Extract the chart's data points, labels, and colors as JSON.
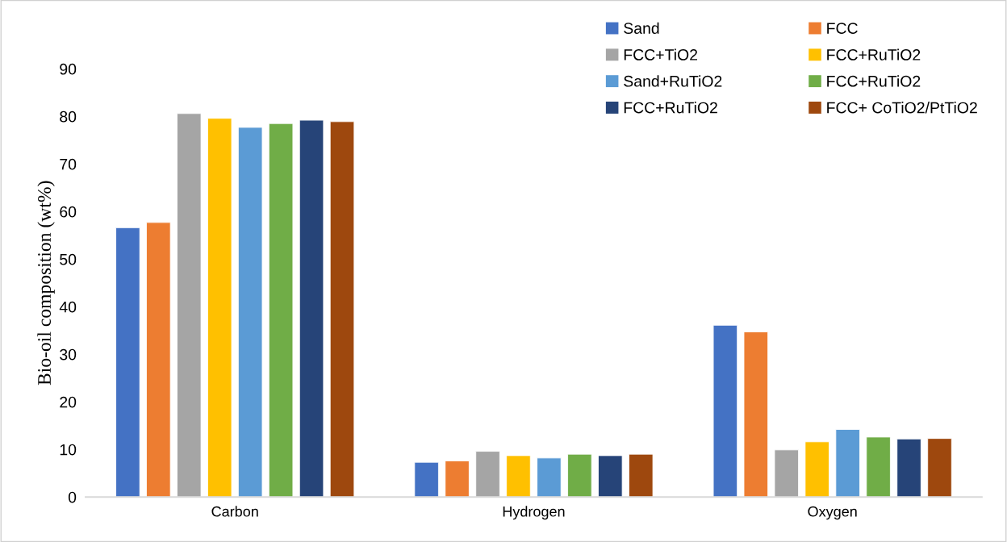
{
  "chart_data": {
    "type": "bar",
    "ylabel": "Bio-oil composition (wt%)",
    "categories": [
      "Carbon",
      "Hydrogen",
      "Oxygen"
    ],
    "series": [
      {
        "name": "Sand",
        "color": "#4472c4",
        "values": [
          56.6,
          7.3,
          36.1
        ]
      },
      {
        "name": "FCC",
        "color": "#ed7d31",
        "values": [
          57.7,
          7.6,
          34.7
        ]
      },
      {
        "name": "FCC+TiO2",
        "color": "#a5a5a5",
        "values": [
          80.6,
          9.6,
          9.9
        ]
      },
      {
        "name": "FCC+RuTiO2",
        "color": "#ffc000",
        "values": [
          79.6,
          8.7,
          11.6
        ]
      },
      {
        "name": "Sand+RuTiO2",
        "color": "#5b9bd5",
        "values": [
          77.7,
          8.2,
          14.2
        ]
      },
      {
        "name": "FCC+RuTiO2",
        "color": "#70ad47",
        "values": [
          78.5,
          9.0,
          12.6
        ]
      },
      {
        "name": "FCC+RuTiO2",
        "color": "#264478",
        "values": [
          79.2,
          8.7,
          12.2
        ]
      },
      {
        "name": "FCC+ CoTiO2/PtTiO2",
        "color": "#9e480e",
        "values": [
          78.9,
          9.0,
          12.3
        ]
      }
    ],
    "ylim": [
      0,
      90
    ],
    "yticks": [
      0,
      10,
      20,
      30,
      40,
      50,
      60,
      70,
      80,
      90
    ],
    "grid": false,
    "legend": "top right"
  }
}
